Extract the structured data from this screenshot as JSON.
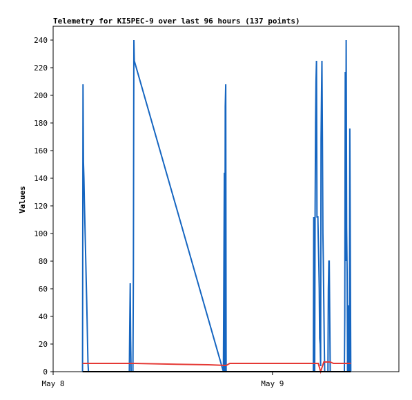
{
  "chart_data": {
    "type": "line",
    "title": "Telemetry for KI5PEC-9 over last 96 hours (137 points)",
    "ylabel": "Values",
    "xlabel": "",
    "ylim": [
      0,
      250
    ],
    "yticks": [
      0,
      20,
      40,
      60,
      80,
      100,
      120,
      140,
      160,
      180,
      200,
      220,
      240
    ],
    "xlim": [
      "2024-05-08T00:00",
      "2024-05-09T13:50"
    ],
    "xticks": [
      {
        "label": "May 8",
        "x": "2024-05-08T00:00"
      },
      {
        "label": "May 9",
        "x": "2024-05-09T00:00"
      }
    ],
    "grid": false,
    "legend": "none",
    "series": [
      {
        "color": "#1565c0",
        "points": [
          [
            "2024-05-08T03:13",
            0
          ],
          [
            "2024-05-08T03:16",
            208
          ],
          [
            "2024-05-08T03:19",
            152
          ],
          [
            "2024-05-08T03:22",
            140
          ],
          [
            "2024-05-08T03:25",
            124
          ],
          [
            "2024-05-08T03:28",
            110
          ],
          [
            "2024-05-08T03:31",
            95
          ],
          [
            "2024-05-08T03:34",
            82
          ],
          [
            "2024-05-08T03:37",
            66
          ],
          [
            "2024-05-08T03:40",
            52
          ],
          [
            "2024-05-08T03:43",
            38
          ],
          [
            "2024-05-08T03:46",
            20
          ],
          [
            "2024-05-08T03:49",
            6
          ],
          [
            "2024-05-08T03:52",
            0
          ],
          [
            "2024-05-08T08:20",
            0
          ],
          [
            "2024-05-08T08:23",
            32
          ],
          [
            "2024-05-08T08:26",
            64
          ],
          [
            "2024-05-08T08:29",
            24
          ],
          [
            "2024-05-08T08:32",
            0
          ],
          [
            "2024-05-08T08:44",
            0
          ],
          [
            "2024-05-08T08:47",
            74
          ],
          [
            "2024-05-08T08:50",
            240
          ],
          [
            "2024-05-08T08:53",
            225
          ],
          [
            "2024-05-08T18:38",
            0
          ],
          [
            "2024-05-08T18:41",
            74
          ],
          [
            "2024-05-08T18:44",
            144
          ],
          [
            "2024-05-08T18:47",
            0
          ],
          [
            "2024-05-08T18:50",
            192
          ],
          [
            "2024-05-08T18:53",
            208
          ],
          [
            "2024-05-08T18:56",
            0
          ],
          [
            "2024-05-09T04:28",
            0
          ],
          [
            "2024-05-09T04:31",
            112
          ],
          [
            "2024-05-09T04:34",
            56
          ],
          [
            "2024-05-09T04:37",
            0
          ],
          [
            "2024-05-09T04:40",
            116
          ],
          [
            "2024-05-09T04:43",
            180
          ],
          [
            "2024-05-09T04:46",
            210
          ],
          [
            "2024-05-09T04:49",
            225
          ],
          [
            "2024-05-09T04:52",
            112
          ],
          [
            "2024-05-09T04:55",
            112
          ],
          [
            "2024-05-09T04:58",
            112
          ],
          [
            "2024-05-09T05:01",
            96
          ],
          [
            "2024-05-09T05:04",
            80
          ],
          [
            "2024-05-09T05:07",
            60
          ],
          [
            "2024-05-09T05:10",
            24
          ],
          [
            "2024-05-09T05:13",
            20
          ],
          [
            "2024-05-09T05:16",
            4
          ],
          [
            "2024-05-09T05:19",
            168
          ],
          [
            "2024-05-09T05:22",
            202
          ],
          [
            "2024-05-09T05:25",
            225
          ],
          [
            "2024-05-09T05:28",
            168
          ],
          [
            "2024-05-09T05:31",
            100
          ],
          [
            "2024-05-09T05:34",
            80
          ],
          [
            "2024-05-09T05:37",
            50
          ],
          [
            "2024-05-09T05:40",
            20
          ],
          [
            "2024-05-09T05:43",
            0
          ],
          [
            "2024-05-09T06:04",
            0
          ],
          [
            "2024-05-09T06:07",
            60
          ],
          [
            "2024-05-09T06:10",
            80
          ],
          [
            "2024-05-09T06:13",
            80
          ],
          [
            "2024-05-09T06:16",
            40
          ],
          [
            "2024-05-09T06:19",
            0
          ],
          [
            "2024-05-09T07:52",
            0
          ],
          [
            "2024-05-09T07:55",
            40
          ],
          [
            "2024-05-09T07:58",
            217
          ],
          [
            "2024-05-09T08:01",
            80
          ],
          [
            "2024-05-09T08:04",
            240
          ],
          [
            "2024-05-09T08:07",
            104
          ],
          [
            "2024-05-09T08:10",
            72
          ],
          [
            "2024-05-09T08:13",
            0
          ],
          [
            "2024-05-09T08:16",
            48
          ],
          [
            "2024-05-09T08:19",
            0
          ],
          [
            "2024-05-09T08:22",
            48
          ],
          [
            "2024-05-09T08:25",
            0
          ],
          [
            "2024-05-09T08:28",
            176
          ],
          [
            "2024-05-09T08:31",
            88
          ],
          [
            "2024-05-09T08:34",
            0
          ]
        ]
      },
      {
        "color": "#e53935",
        "points": [
          [
            "2024-05-08T03:13",
            6
          ],
          [
            "2024-05-08T08:53",
            6
          ],
          [
            "2024-05-08T12:30",
            5.5
          ],
          [
            "2024-05-08T17:00",
            5
          ],
          [
            "2024-05-08T18:56",
            4.5
          ],
          [
            "2024-05-08T19:20",
            6
          ],
          [
            "2024-05-09T04:28",
            6
          ],
          [
            "2024-05-09T05:01",
            6
          ],
          [
            "2024-05-09T05:16",
            0
          ],
          [
            "2024-05-09T05:37",
            7
          ],
          [
            "2024-05-09T06:19",
            7
          ],
          [
            "2024-05-09T06:40",
            6
          ],
          [
            "2024-05-09T08:34",
            6
          ]
        ]
      },
      {
        "color": "#000000",
        "points": [
          [
            "2024-05-08T03:13",
            0
          ],
          [
            "2024-05-09T08:34",
            0
          ]
        ]
      }
    ]
  }
}
